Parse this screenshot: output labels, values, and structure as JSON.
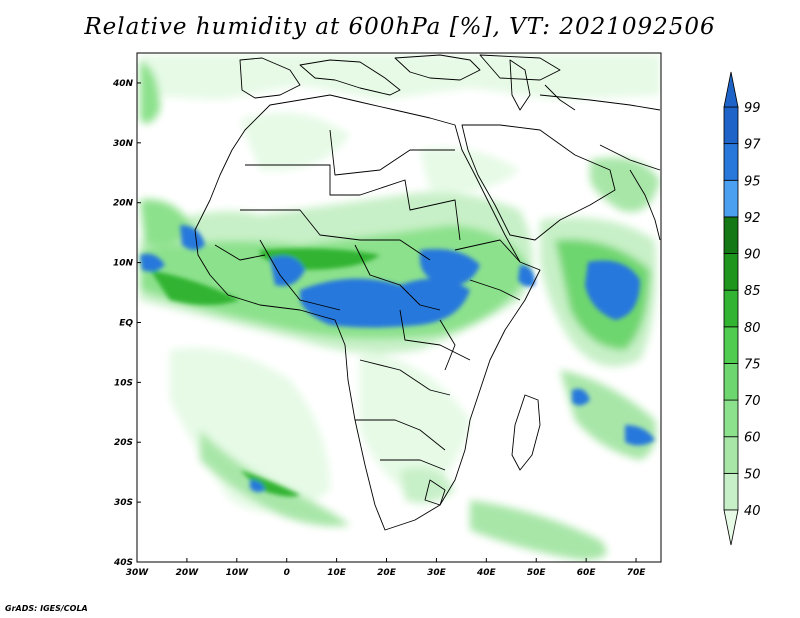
{
  "title": "Relative humidity at 600hPa [%], VT: 2021092506",
  "credit": "GrADS: IGES/COLA",
  "map": {
    "projection": "lat-lon",
    "lon_range": [
      -30,
      75
    ],
    "lat_range": [
      -40,
      45
    ],
    "x_ticks": [
      "30W",
      "20W",
      "10W",
      "0",
      "10E",
      "20E",
      "30E",
      "40E",
      "50E",
      "60E",
      "70E"
    ],
    "y_ticks": [
      "40N",
      "30N",
      "20N",
      "10N",
      "EQ",
      "10S",
      "20S",
      "30S",
      "40S"
    ]
  },
  "colorbar": {
    "labels": [
      "40",
      "50",
      "60",
      "70",
      "75",
      "80",
      "85",
      "90",
      "92",
      "95",
      "97",
      "99"
    ],
    "colors": [
      "#e6fae6",
      "#c8f0c8",
      "#a8e6a8",
      "#8ce18c",
      "#6ed66e",
      "#50cc50",
      "#32b432",
      "#1e961e",
      "#147814",
      "#4ba0f0",
      "#2878dc",
      "#1e64c8"
    ]
  }
}
